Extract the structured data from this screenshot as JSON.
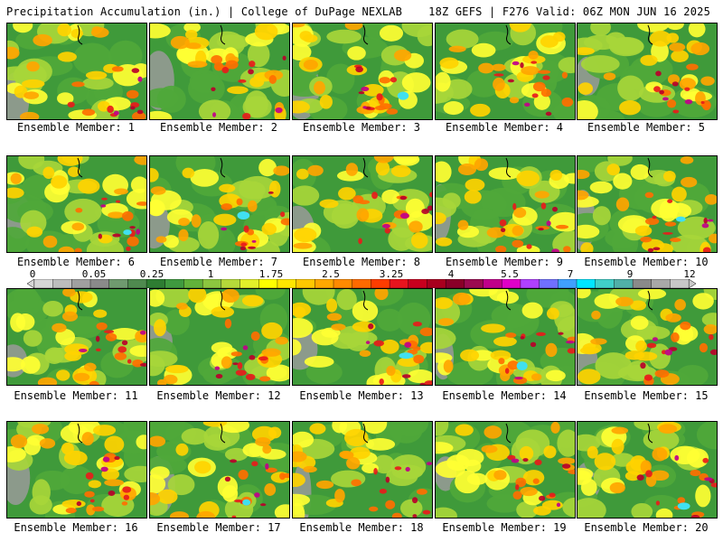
{
  "header": {
    "title": "Precipitation Accumulation (in.) | College of DuPage NEXLAB",
    "run_info": "18Z GEFS | F276 Valid: 06Z MON JUN 16 2025"
  },
  "members": [
    {
      "label": "Ensemble Member: 1"
    },
    {
      "label": "Ensemble Member: 2"
    },
    {
      "label": "Ensemble Member: 3"
    },
    {
      "label": "Ensemble Member: 4"
    },
    {
      "label": "Ensemble Member: 5"
    },
    {
      "label": "Ensemble Member: 6"
    },
    {
      "label": "Ensemble Member: 7"
    },
    {
      "label": "Ensemble Member: 8"
    },
    {
      "label": "Ensemble Member: 9"
    },
    {
      "label": "Ensemble Member: 10"
    },
    {
      "label": "Ensemble Member: 11"
    },
    {
      "label": "Ensemble Member: 12"
    },
    {
      "label": "Ensemble Member: 13"
    },
    {
      "label": "Ensemble Member: 14"
    },
    {
      "label": "Ensemble Member: 15"
    },
    {
      "label": "Ensemble Member: 16"
    },
    {
      "label": "Ensemble Member: 17"
    },
    {
      "label": "Ensemble Member: 18"
    },
    {
      "label": "Ensemble Member: 19"
    },
    {
      "label": "Ensemble Member: 20"
    }
  ],
  "colorbar": {
    "labels": [
      "0",
      "0.05",
      "0.25",
      "1",
      "1.75",
      "2.5",
      "3.25",
      "4",
      "5.5",
      "7",
      "9",
      "12"
    ],
    "colors": [
      "#d6d6d6",
      "#bdbdbd",
      "#a0a0a0",
      "#8a8a8a",
      "#6f9a6f",
      "#4f8a4f",
      "#2e7d32",
      "#3f9a3f",
      "#62b23a",
      "#8cc63f",
      "#b5d93a",
      "#e3ef2a",
      "#ffff00",
      "#ffe600",
      "#ffc800",
      "#ffa800",
      "#ff8a00",
      "#ff6a00",
      "#ff3c00",
      "#e8141e",
      "#c8001e",
      "#a8001e",
      "#8a0028",
      "#9c0a50",
      "#c0008a",
      "#e000c8",
      "#b040ff",
      "#7070ff",
      "#40a0ff",
      "#00e6ff",
      "#40d0c8",
      "#50b0a8",
      "#8a8a8a",
      "#a8a8a8",
      "#c8c8c8"
    ]
  }
}
